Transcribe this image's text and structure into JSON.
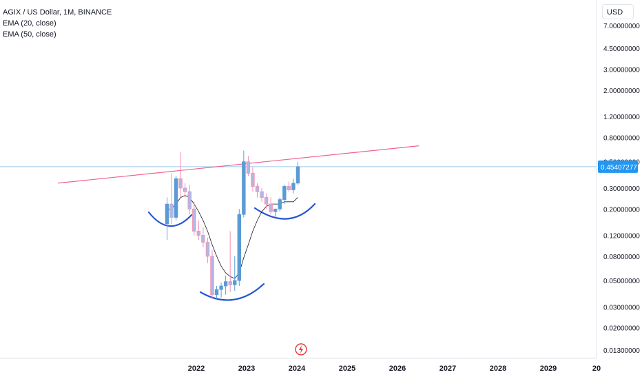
{
  "legend": {
    "symbol": "AGIX / US Dollar, 1M, BINANCE",
    "ema20": "EMA (20, close)",
    "ema50": "EMA (50, close)"
  },
  "currency": "USD",
  "price_badge": "0.45407277",
  "colors": {
    "up": "#5b9bd5",
    "down": "#f48fb1",
    "trendline": "#f06292",
    "pattern": "#2455d8"
  },
  "chart_data": {
    "type": "candlestick",
    "y_scale": "log",
    "y_ticks": [
      "7.00000000",
      "4.50000000",
      "3.00000000",
      "2.00000000",
      "1.20000000",
      "0.80000000",
      "0.50000000",
      "0.30000000",
      "0.20000000",
      "0.12000000",
      "0.08000000",
      "0.05000000",
      "0.03000000",
      "0.02000000",
      "0.01300000"
    ],
    "x_ticks": [
      "2022",
      "2023",
      "2024",
      "2025",
      "2026",
      "2027",
      "2028",
      "2029",
      "20"
    ],
    "last_price": 0.45407277,
    "candles": [
      {
        "o": 0.15,
        "h": 0.25,
        "l": 0.11,
        "c": 0.22
      },
      {
        "o": 0.22,
        "h": 0.4,
        "l": 0.15,
        "c": 0.17
      },
      {
        "o": 0.17,
        "h": 0.38,
        "l": 0.16,
        "c": 0.36
      },
      {
        "o": 0.36,
        "h": 0.6,
        "l": 0.25,
        "c": 0.3
      },
      {
        "o": 0.3,
        "h": 0.33,
        "l": 0.25,
        "c": 0.28
      },
      {
        "o": 0.28,
        "h": 0.32,
        "l": 0.18,
        "c": 0.2
      },
      {
        "o": 0.2,
        "h": 0.23,
        "l": 0.12,
        "c": 0.13
      },
      {
        "o": 0.13,
        "h": 0.16,
        "l": 0.11,
        "c": 0.12
      },
      {
        "o": 0.12,
        "h": 0.14,
        "l": 0.095,
        "c": 0.105
      },
      {
        "o": 0.105,
        "h": 0.115,
        "l": 0.07,
        "c": 0.08
      },
      {
        "o": 0.08,
        "h": 0.09,
        "l": 0.035,
        "c": 0.038
      },
      {
        "o": 0.038,
        "h": 0.045,
        "l": 0.035,
        "c": 0.042
      },
      {
        "o": 0.042,
        "h": 0.048,
        "l": 0.036,
        "c": 0.045
      },
      {
        "o": 0.045,
        "h": 0.055,
        "l": 0.038,
        "c": 0.049
      },
      {
        "o": 0.049,
        "h": 0.13,
        "l": 0.04,
        "c": 0.046
      },
      {
        "o": 0.046,
        "h": 0.08,
        "l": 0.041,
        "c": 0.05
      },
      {
        "o": 0.05,
        "h": 0.2,
        "l": 0.045,
        "c": 0.18
      },
      {
        "o": 0.18,
        "h": 0.62,
        "l": 0.17,
        "c": 0.5
      },
      {
        "o": 0.5,
        "h": 0.56,
        "l": 0.38,
        "c": 0.4
      },
      {
        "o": 0.4,
        "h": 0.45,
        "l": 0.28,
        "c": 0.31
      },
      {
        "o": 0.31,
        "h": 0.33,
        "l": 0.25,
        "c": 0.28
      },
      {
        "o": 0.28,
        "h": 0.3,
        "l": 0.23,
        "c": 0.25
      },
      {
        "o": 0.25,
        "h": 0.27,
        "l": 0.2,
        "c": 0.22
      },
      {
        "o": 0.22,
        "h": 0.25,
        "l": 0.18,
        "c": 0.19
      },
      {
        "o": 0.19,
        "h": 0.2,
        "l": 0.17,
        "c": 0.2
      },
      {
        "o": 0.2,
        "h": 0.25,
        "l": 0.19,
        "c": 0.24
      },
      {
        "o": 0.24,
        "h": 0.32,
        "l": 0.22,
        "c": 0.31
      },
      {
        "o": 0.31,
        "h": 0.34,
        "l": 0.28,
        "c": 0.29
      },
      {
        "o": 0.29,
        "h": 0.36,
        "l": 0.27,
        "c": 0.33
      },
      {
        "o": 0.33,
        "h": 0.5,
        "l": 0.32,
        "c": 0.45407277
      }
    ],
    "trendline": [
      {
        "x": 0,
        "y": 0.33
      },
      {
        "x": 51,
        "y": 0.68
      }
    ],
    "ema20": [
      0.2,
      0.2,
      0.22,
      0.25,
      0.26,
      0.25,
      0.22,
      0.19,
      0.16,
      0.13,
      0.1,
      0.08,
      0.066,
      0.058,
      0.054,
      0.052,
      0.058,
      0.078,
      0.1,
      0.13,
      0.16,
      0.19,
      0.21,
      0.22,
      0.22,
      0.22,
      0.23,
      0.23,
      0.23,
      0.25
    ]
  }
}
